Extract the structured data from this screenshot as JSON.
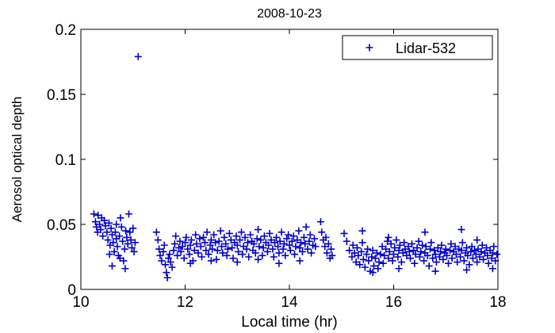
{
  "chart_data": {
    "type": "scatter",
    "title": "2008-10-23",
    "xlabel": "Local time (hr)",
    "ylabel": "Aerosol optical depth",
    "xlim": [
      10,
      18
    ],
    "ylim": [
      0,
      0.2
    ],
    "x_ticks": [
      10,
      12,
      14,
      16,
      18
    ],
    "x_tick_labels": [
      "10",
      "12",
      "14",
      "16",
      "18"
    ],
    "y_ticks": [
      0,
      0.05,
      0.1,
      0.15,
      0.2
    ],
    "y_tick_labels": [
      "0",
      "0.05",
      "0.1",
      "0.15",
      "0.2"
    ],
    "grid": false,
    "legend_position": "top-right",
    "marker": "plus",
    "series": [
      {
        "name": "Lidar-532",
        "color": "#0000cc",
        "points": [
          [
            10.25,
            0.058
          ],
          [
            10.28,
            0.052
          ],
          [
            10.3,
            0.048
          ],
          [
            10.32,
            0.044
          ],
          [
            10.33,
            0.057
          ],
          [
            10.36,
            0.05
          ],
          [
            10.38,
            0.046
          ],
          [
            10.4,
            0.055
          ],
          [
            10.42,
            0.041
          ],
          [
            10.45,
            0.053
          ],
          [
            10.47,
            0.049
          ],
          [
            10.5,
            0.044
          ],
          [
            10.52,
            0.038
          ],
          [
            10.54,
            0.051
          ],
          [
            10.56,
            0.034
          ],
          [
            10.58,
            0.047
          ],
          [
            10.6,
            0.042
          ],
          [
            10.62,
            0.036
          ],
          [
            10.64,
            0.029
          ],
          [
            10.66,
            0.044
          ],
          [
            10.68,
            0.039
          ],
          [
            10.7,
            0.033
          ],
          [
            10.72,
            0.026
          ],
          [
            10.74,
            0.041
          ],
          [
            10.76,
            0.055
          ],
          [
            10.78,
            0.048
          ],
          [
            10.8,
            0.037
          ],
          [
            10.82,
            0.022
          ],
          [
            10.84,
            0.031
          ],
          [
            10.86,
            0.045
          ],
          [
            10.88,
            0.04
          ],
          [
            10.9,
            0.035
          ],
          [
            10.92,
            0.058
          ],
          [
            10.94,
            0.044
          ],
          [
            10.96,
            0.038
          ],
          [
            10.98,
            0.032
          ],
          [
            11.0,
            0.047
          ],
          [
            11.02,
            0.029
          ],
          [
            11.04,
            0.036
          ],
          [
            11.1,
            0.179
          ],
          [
            10.6,
            0.018
          ],
          [
            10.75,
            0.024
          ],
          [
            10.85,
            0.016
          ],
          [
            10.55,
            0.027
          ],
          [
            10.68,
            0.05
          ],
          [
            11.45,
            0.044
          ],
          [
            11.48,
            0.038
          ],
          [
            11.5,
            0.031
          ],
          [
            11.52,
            0.026
          ],
          [
            11.55,
            0.022
          ],
          [
            11.58,
            0.029
          ],
          [
            11.6,
            0.034
          ],
          [
            11.62,
            0.019
          ],
          [
            11.64,
            0.013
          ],
          [
            11.66,
            0.009
          ],
          [
            11.68,
            0.024
          ],
          [
            11.7,
            0.027
          ],
          [
            11.72,
            0.021
          ],
          [
            11.75,
            0.017
          ],
          [
            11.78,
            0.03
          ],
          [
            11.8,
            0.035
          ],
          [
            11.82,
            0.041
          ],
          [
            11.85,
            0.026
          ],
          [
            11.88,
            0.032
          ],
          [
            11.9,
            0.037
          ],
          [
            11.92,
            0.029
          ],
          [
            11.95,
            0.033
          ],
          [
            11.98,
            0.024
          ],
          [
            12.0,
            0.036
          ],
          [
            12.02,
            0.04
          ],
          [
            12.05,
            0.031
          ],
          [
            12.08,
            0.027
          ],
          [
            12.1,
            0.034
          ],
          [
            12.12,
            0.038
          ],
          [
            12.15,
            0.022
          ],
          [
            12.18,
            0.03
          ],
          [
            12.2,
            0.042
          ],
          [
            12.22,
            0.035
          ],
          [
            12.25,
            0.028
          ],
          [
            12.28,
            0.039
          ],
          [
            12.3,
            0.033
          ],
          [
            12.32,
            0.025
          ],
          [
            12.35,
            0.04
          ],
          [
            12.38,
            0.036
          ],
          [
            12.4,
            0.03
          ],
          [
            12.42,
            0.044
          ],
          [
            12.45,
            0.027
          ],
          [
            12.48,
            0.034
          ],
          [
            12.5,
            0.038
          ],
          [
            12.52,
            0.031
          ],
          [
            12.55,
            0.042
          ],
          [
            12.58,
            0.036
          ],
          [
            12.6,
            0.023
          ],
          [
            12.62,
            0.03
          ],
          [
            12.65,
            0.037
          ],
          [
            12.68,
            0.045
          ],
          [
            12.7,
            0.033
          ],
          [
            12.72,
            0.028
          ],
          [
            12.75,
            0.04
          ],
          [
            12.78,
            0.035
          ],
          [
            12.8,
            0.026
          ],
          [
            12.82,
            0.031
          ],
          [
            12.85,
            0.043
          ],
          [
            12.88,
            0.038
          ],
          [
            12.9,
            0.032
          ],
          [
            12.92,
            0.024
          ],
          [
            12.95,
            0.036
          ],
          [
            12.98,
            0.041
          ],
          [
            13.0,
            0.034
          ],
          [
            13.02,
            0.029
          ],
          [
            13.05,
            0.038
          ],
          [
            13.08,
            0.044
          ],
          [
            13.1,
            0.027
          ],
          [
            13.12,
            0.033
          ],
          [
            13.15,
            0.04
          ],
          [
            13.18,
            0.031
          ],
          [
            13.2,
            0.036
          ],
          [
            13.22,
            0.025
          ],
          [
            13.25,
            0.042
          ],
          [
            13.28,
            0.037
          ],
          [
            13.3,
            0.03
          ],
          [
            13.32,
            0.035
          ],
          [
            13.35,
            0.028
          ],
          [
            13.38,
            0.039
          ],
          [
            13.4,
            0.046
          ],
          [
            13.42,
            0.033
          ],
          [
            13.45,
            0.038
          ],
          [
            13.48,
            0.026
          ],
          [
            13.5,
            0.032
          ],
          [
            13.52,
            0.041
          ],
          [
            13.55,
            0.036
          ],
          [
            13.58,
            0.029
          ],
          [
            13.6,
            0.034
          ],
          [
            13.62,
            0.043
          ],
          [
            13.65,
            0.038
          ],
          [
            13.68,
            0.031
          ],
          [
            13.7,
            0.025
          ],
          [
            13.72,
            0.036
          ],
          [
            13.75,
            0.04
          ],
          [
            13.78,
            0.033
          ],
          [
            13.8,
            0.028
          ],
          [
            13.82,
            0.037
          ],
          [
            13.85,
            0.044
          ],
          [
            13.88,
            0.031
          ],
          [
            13.9,
            0.035
          ],
          [
            13.92,
            0.026
          ],
          [
            13.95,
            0.039
          ],
          [
            13.98,
            0.042
          ],
          [
            14.0,
            0.034
          ],
          [
            14.02,
            0.03
          ],
          [
            14.05,
            0.037
          ],
          [
            14.08,
            0.041
          ],
          [
            14.1,
            0.027
          ],
          [
            14.12,
            0.033
          ],
          [
            14.15,
            0.038
          ],
          [
            14.18,
            0.045
          ],
          [
            14.2,
            0.032
          ],
          [
            14.22,
            0.036
          ],
          [
            14.25,
            0.029
          ],
          [
            14.28,
            0.04
          ],
          [
            14.3,
            0.035
          ],
          [
            14.32,
            0.048
          ],
          [
            14.35,
            0.031
          ],
          [
            14.38,
            0.037
          ],
          [
            14.4,
            0.042
          ],
          [
            14.42,
            0.028
          ],
          [
            14.45,
            0.034
          ],
          [
            14.48,
            0.039
          ],
          [
            14.5,
            0.033
          ],
          [
            12.1,
            0.02
          ],
          [
            12.5,
            0.022
          ],
          [
            13.0,
            0.021
          ],
          [
            13.4,
            0.023
          ],
          [
            13.8,
            0.02
          ],
          [
            14.2,
            0.022
          ],
          [
            14.6,
            0.052
          ],
          [
            14.62,
            0.044
          ],
          [
            14.65,
            0.038
          ],
          [
            14.68,
            0.033
          ],
          [
            14.7,
            0.04
          ],
          [
            14.72,
            0.028
          ],
          [
            14.75,
            0.035
          ],
          [
            14.78,
            0.024
          ],
          [
            14.8,
            0.031
          ],
          [
            14.82,
            0.026
          ],
          [
            15.05,
            0.043
          ],
          [
            15.1,
            0.037
          ],
          [
            15.15,
            0.03
          ],
          [
            15.2,
            0.025
          ],
          [
            15.22,
            0.034
          ],
          [
            15.25,
            0.028
          ],
          [
            15.28,
            0.021
          ],
          [
            15.3,
            0.032
          ],
          [
            15.32,
            0.026
          ],
          [
            15.35,
            0.019
          ],
          [
            15.38,
            0.029
          ],
          [
            15.4,
            0.036
          ],
          [
            15.42,
            0.023
          ],
          [
            15.45,
            0.017
          ],
          [
            15.48,
            0.027
          ],
          [
            15.5,
            0.031
          ],
          [
            15.52,
            0.022
          ],
          [
            15.55,
            0.014
          ],
          [
            15.58,
            0.025
          ],
          [
            15.6,
            0.03
          ],
          [
            15.62,
            0.018
          ],
          [
            15.65,
            0.024
          ],
          [
            15.68,
            0.028
          ],
          [
            15.7,
            0.016
          ],
          [
            15.72,
            0.021
          ],
          [
            15.75,
            0.027
          ],
          [
            15.78,
            0.033
          ],
          [
            15.8,
            0.02
          ],
          [
            15.82,
            0.026
          ],
          [
            15.85,
            0.031
          ],
          [
            15.88,
            0.037
          ],
          [
            15.9,
            0.024
          ],
          [
            15.92,
            0.029
          ],
          [
            15.95,
            0.035
          ],
          [
            15.98,
            0.022
          ],
          [
            16.0,
            0.027
          ],
          [
            16.02,
            0.032
          ],
          [
            16.05,
            0.038
          ],
          [
            16.08,
            0.025
          ],
          [
            16.1,
            0.03
          ],
          [
            16.12,
            0.034
          ],
          [
            16.15,
            0.021
          ],
          [
            16.18,
            0.028
          ],
          [
            16.2,
            0.036
          ],
          [
            16.22,
            0.031
          ],
          [
            16.25,
            0.026
          ],
          [
            16.28,
            0.033
          ],
          [
            16.3,
            0.029
          ],
          [
            16.32,
            0.024
          ],
          [
            16.35,
            0.035
          ],
          [
            16.38,
            0.03
          ],
          [
            16.4,
            0.02
          ],
          [
            16.42,
            0.027
          ],
          [
            16.45,
            0.032
          ],
          [
            16.48,
            0.037
          ],
          [
            16.5,
            0.025
          ],
          [
            16.52,
            0.029
          ],
          [
            16.55,
            0.034
          ],
          [
            16.58,
            0.022
          ],
          [
            16.6,
            0.028
          ],
          [
            16.62,
            0.033
          ],
          [
            16.65,
            0.026
          ],
          [
            16.68,
            0.018
          ],
          [
            16.7,
            0.031
          ],
          [
            16.72,
            0.036
          ],
          [
            16.75,
            0.024
          ],
          [
            16.78,
            0.03
          ],
          [
            16.8,
            0.027
          ],
          [
            16.82,
            0.021
          ],
          [
            16.85,
            0.032
          ],
          [
            16.88,
            0.025
          ],
          [
            16.9,
            0.029
          ],
          [
            16.92,
            0.034
          ],
          [
            16.95,
            0.023
          ],
          [
            16.98,
            0.028
          ],
          [
            17.0,
            0.031
          ],
          [
            17.02,
            0.026
          ],
          [
            17.05,
            0.02
          ],
          [
            17.08,
            0.03
          ],
          [
            17.1,
            0.035
          ],
          [
            17.12,
            0.024
          ],
          [
            17.15,
            0.029
          ],
          [
            17.18,
            0.033
          ],
          [
            17.2,
            0.027
          ],
          [
            17.22,
            0.021
          ],
          [
            17.25,
            0.031
          ],
          [
            17.28,
            0.025
          ],
          [
            17.3,
            0.03
          ],
          [
            17.32,
            0.036
          ],
          [
            17.35,
            0.022
          ],
          [
            17.38,
            0.028
          ],
          [
            17.4,
            0.032
          ],
          [
            17.42,
            0.026
          ],
          [
            17.45,
            0.019
          ],
          [
            17.48,
            0.029
          ],
          [
            17.5,
            0.033
          ],
          [
            17.52,
            0.024
          ],
          [
            17.55,
            0.03
          ],
          [
            17.58,
            0.027
          ],
          [
            17.6,
            0.021
          ],
          [
            17.62,
            0.031
          ],
          [
            17.65,
            0.025
          ],
          [
            17.68,
            0.029
          ],
          [
            17.7,
            0.034
          ],
          [
            17.72,
            0.023
          ],
          [
            17.75,
            0.028
          ],
          [
            17.78,
            0.032
          ],
          [
            17.8,
            0.026
          ],
          [
            17.82,
            0.02
          ],
          [
            17.85,
            0.03
          ],
          [
            17.88,
            0.024
          ],
          [
            17.9,
            0.028
          ],
          [
            17.92,
            0.033
          ],
          [
            17.95,
            0.022
          ],
          [
            17.98,
            0.027
          ],
          [
            15.4,
            0.045
          ],
          [
            15.9,
            0.04
          ],
          [
            16.6,
            0.044
          ],
          [
            17.3,
            0.046
          ],
          [
            17.6,
            0.038
          ],
          [
            15.6,
            0.013
          ],
          [
            16.1,
            0.016
          ],
          [
            16.8,
            0.014
          ],
          [
            17.4,
            0.015
          ],
          [
            17.9,
            0.016
          ]
        ]
      }
    ]
  }
}
